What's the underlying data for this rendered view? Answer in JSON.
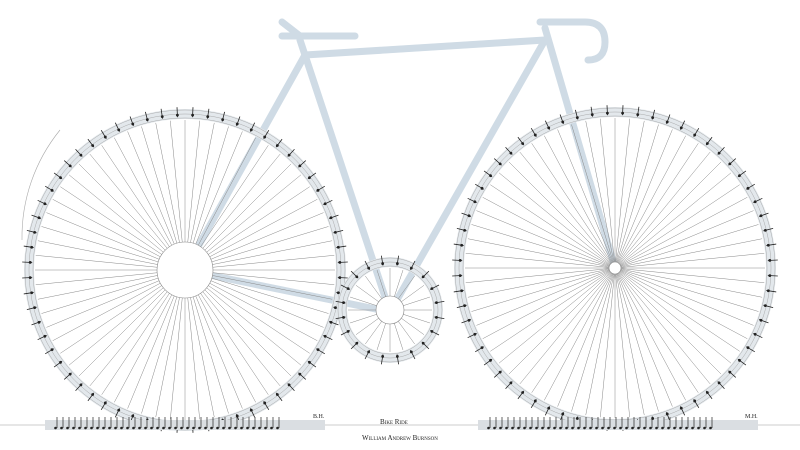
{
  "title": "Bike Ride",
  "composer": "William Andrew Burnson",
  "left_staff_end_label": "B.H.",
  "right_staff_end_label": "M.H.",
  "colors": {
    "frame": "#cfdbe5",
    "ink": "#222222",
    "staff": "#e3e8ec"
  }
}
